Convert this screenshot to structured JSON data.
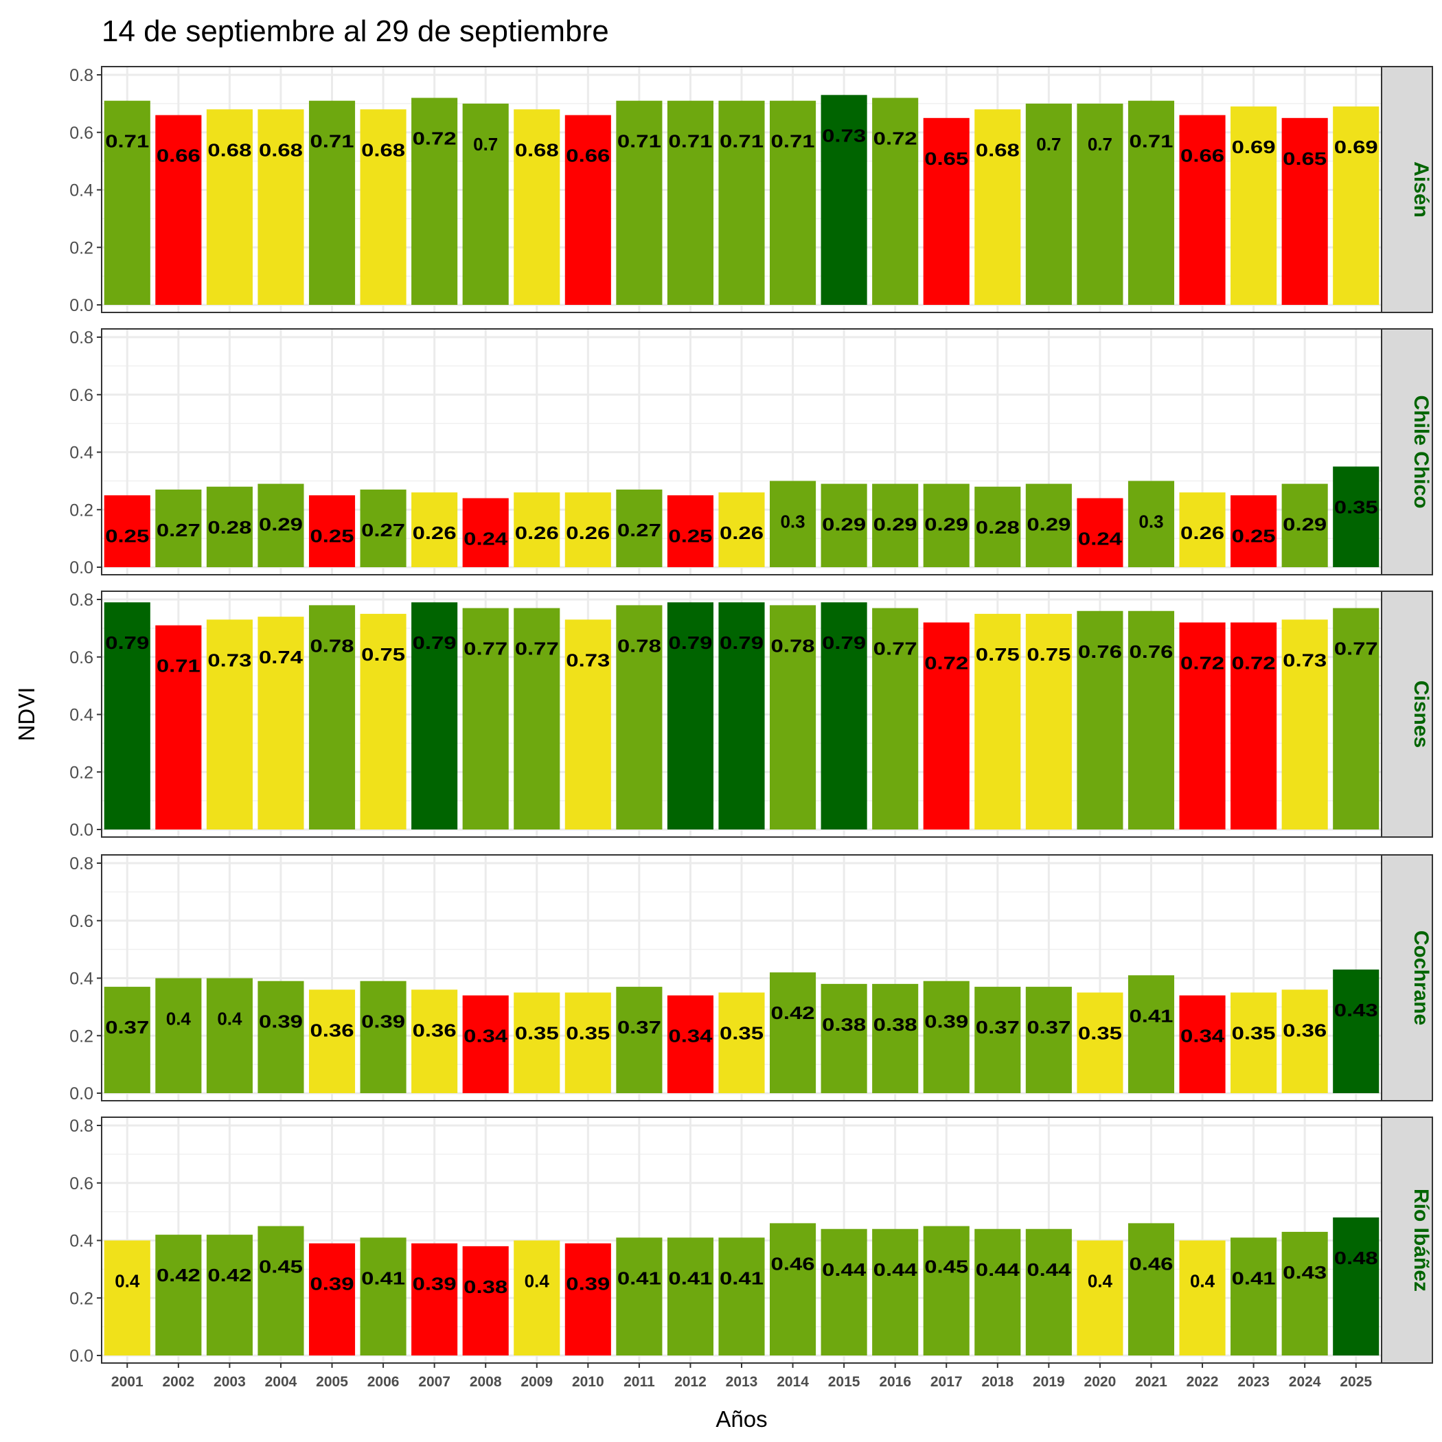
{
  "chart_data": {
    "type": "bar",
    "title": "14 de septiembre al 29 de septiembre",
    "xlabel": "Años",
    "ylabel": "NDVI",
    "ylim": [
      0,
      0.8
    ],
    "yticks": [
      "0.0",
      "0.2",
      "0.4",
      "0.6",
      "0.8"
    ],
    "grid": true,
    "categories": [
      "2001",
      "2002",
      "2003",
      "2004",
      "2005",
      "2006",
      "2007",
      "2008",
      "2009",
      "2010",
      "2011",
      "2012",
      "2013",
      "2014",
      "2015",
      "2016",
      "2017",
      "2018",
      "2019",
      "2020",
      "2021",
      "2022",
      "2023",
      "2024",
      "2025"
    ],
    "color_classes": {
      "G": "#6ea80f",
      "R": "#ff0000",
      "Y": "#f0e11a",
      "D": "#006400"
    },
    "strip_text_color": "#006400",
    "panels": [
      {
        "name": "Aisén",
        "values": [
          0.71,
          0.66,
          0.68,
          0.68,
          0.71,
          0.68,
          0.72,
          0.7,
          0.68,
          0.66,
          0.71,
          0.71,
          0.71,
          0.71,
          0.73,
          0.72,
          0.65,
          0.68,
          0.7,
          0.7,
          0.71,
          0.66,
          0.69,
          0.65,
          0.69
        ],
        "colors": [
          "G",
          "R",
          "Y",
          "Y",
          "G",
          "Y",
          "G",
          "G",
          "Y",
          "R",
          "G",
          "G",
          "G",
          "G",
          "D",
          "G",
          "R",
          "Y",
          "G",
          "G",
          "G",
          "R",
          "Y",
          "R",
          "Y"
        ]
      },
      {
        "name": "Chile Chico",
        "values": [
          0.25,
          0.27,
          0.28,
          0.29,
          0.25,
          0.27,
          0.26,
          0.24,
          0.26,
          0.26,
          0.27,
          0.25,
          0.26,
          0.3,
          0.29,
          0.29,
          0.29,
          0.28,
          0.29,
          0.24,
          0.3,
          0.26,
          0.25,
          0.29,
          0.35
        ],
        "colors": [
          "R",
          "G",
          "G",
          "G",
          "R",
          "G",
          "Y",
          "R",
          "Y",
          "Y",
          "G",
          "R",
          "Y",
          "G",
          "G",
          "G",
          "G",
          "G",
          "G",
          "R",
          "G",
          "Y",
          "R",
          "G",
          "D"
        ]
      },
      {
        "name": "Cisnes",
        "values": [
          0.79,
          0.71,
          0.73,
          0.74,
          0.78,
          0.75,
          0.79,
          0.77,
          0.77,
          0.73,
          0.78,
          0.79,
          0.79,
          0.78,
          0.79,
          0.77,
          0.72,
          0.75,
          0.75,
          0.76,
          0.76,
          0.72,
          0.72,
          0.73,
          0.77
        ],
        "colors": [
          "D",
          "R",
          "Y",
          "Y",
          "G",
          "Y",
          "D",
          "G",
          "G",
          "Y",
          "G",
          "D",
          "D",
          "G",
          "D",
          "G",
          "R",
          "Y",
          "Y",
          "G",
          "G",
          "R",
          "R",
          "Y",
          "G"
        ]
      },
      {
        "name": "Cochrane",
        "values": [
          0.37,
          0.4,
          0.4,
          0.39,
          0.36,
          0.39,
          0.36,
          0.34,
          0.35,
          0.35,
          0.37,
          0.34,
          0.35,
          0.42,
          0.38,
          0.38,
          0.39,
          0.37,
          0.37,
          0.35,
          0.41,
          0.34,
          0.35,
          0.36,
          0.43
        ],
        "colors": [
          "G",
          "G",
          "G",
          "G",
          "Y",
          "G",
          "Y",
          "R",
          "Y",
          "Y",
          "G",
          "R",
          "Y",
          "G",
          "G",
          "G",
          "G",
          "G",
          "G",
          "Y",
          "G",
          "R",
          "Y",
          "Y",
          "D"
        ]
      },
      {
        "name": "Río Ibáñez",
        "values": [
          0.4,
          0.42,
          0.42,
          0.45,
          0.39,
          0.41,
          0.39,
          0.38,
          0.4,
          0.39,
          0.41,
          0.41,
          0.41,
          0.46,
          0.44,
          0.44,
          0.45,
          0.44,
          0.44,
          0.4,
          0.46,
          0.4,
          0.41,
          0.43,
          0.48
        ],
        "colors": [
          "Y",
          "G",
          "G",
          "G",
          "R",
          "G",
          "R",
          "R",
          "Y",
          "R",
          "G",
          "G",
          "G",
          "G",
          "G",
          "G",
          "G",
          "G",
          "G",
          "Y",
          "G",
          "Y",
          "G",
          "G",
          "D"
        ]
      }
    ]
  }
}
